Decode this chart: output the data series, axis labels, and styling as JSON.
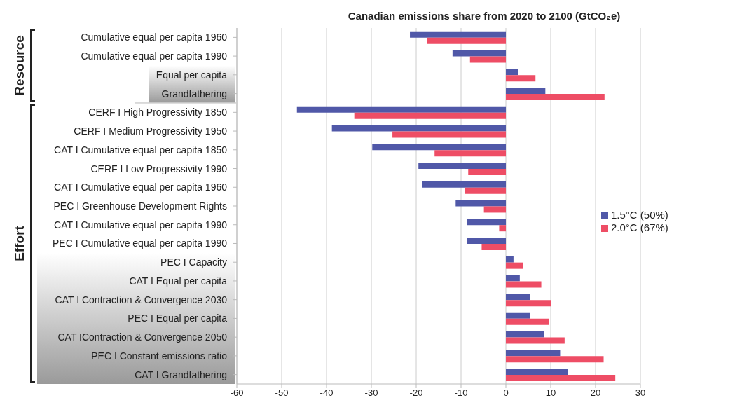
{
  "chart_data": {
    "type": "bar",
    "orientation": "horizontal",
    "title": "Canadian emissions share from 2020 to 2100 (GtCO₂e)",
    "categories": [
      "Cumulative equal per capita 1960",
      "Cumulative equal per capita 1990",
      "Equal per capita",
      "Grandfathering",
      "CERF I High Progressivity 1850",
      "CERF I Medium Progressivity 1950",
      "CAT I Cumulative equal per capita 1850",
      "CERF I Low Progressivity 1990",
      "CAT I Cumulative equal per capita 1960",
      "PEC I Greenhouse Development Rights",
      "CAT I Cumulative equal per capita 1990",
      "PEC I Cumulative equal per capita 1990",
      "PEC I Capacity",
      "CAT I Equal per capita",
      "CAT I Contraction & Convergence 2030",
      "PEC I Equal per capita",
      "CAT IContraction & Convergence 2050",
      "PEC I Constant emissions ratio",
      "CAT I Grandfathering"
    ],
    "series": [
      {
        "name": "1.5°C (50%)",
        "color": "#5058a8",
        "values": [
          -21.4,
          -11.9,
          2.7,
          8.8,
          -46.6,
          -38.8,
          -29.8,
          -19.5,
          -18.7,
          -11.2,
          -8.7,
          -8.7,
          1.7,
          3.1,
          5.4,
          5.4,
          8.5,
          12.1,
          13.8
        ]
      },
      {
        "name": "2.0°C (67%)",
        "color": "#ee4d65",
        "values": [
          -17.6,
          -8.0,
          6.6,
          22.0,
          -33.8,
          -25.3,
          -15.9,
          -8.4,
          -9.1,
          -4.9,
          -1.5,
          -5.4,
          3.9,
          7.9,
          10.0,
          9.6,
          13.1,
          21.8,
          24.4
        ]
      }
    ],
    "xlim": [
      -60,
      30
    ],
    "xticks": [
      -60,
      -50,
      -40,
      -30,
      -20,
      -10,
      0,
      10,
      20,
      30
    ],
    "grid": "x",
    "legend": "right",
    "annotations": [
      "Resource",
      "Effort"
    ]
  }
}
